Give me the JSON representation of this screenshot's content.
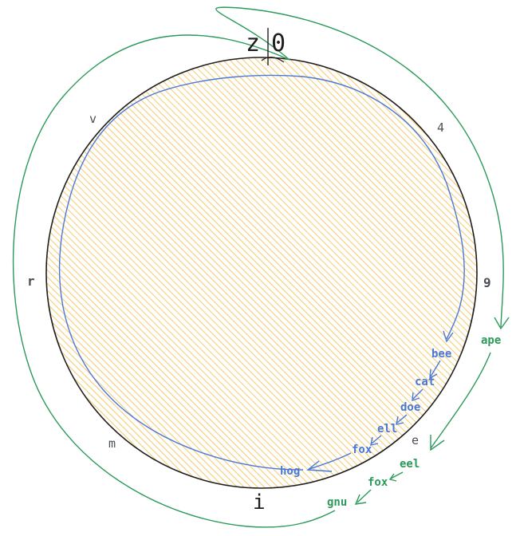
{
  "top_labels": {
    "left": "z",
    "right": "0"
  },
  "bottom_label": "i",
  "ring_labels": {
    "v": "v",
    "four": "4",
    "r": "r",
    "nine": "9",
    "m": "m",
    "e": "e"
  },
  "blue_sequence": [
    "bee",
    "cat",
    "doe",
    "ell",
    "fox",
    "hog"
  ],
  "green_sequence": [
    "ape",
    "eel",
    "fox",
    "gnu"
  ],
  "colors": {
    "circle_fill": "#f2c14e",
    "circle_stroke": "#1e1e1e",
    "blue_path": "#4a78d8",
    "green_path": "#2b9a5a",
    "ring_text": "#495057"
  }
}
